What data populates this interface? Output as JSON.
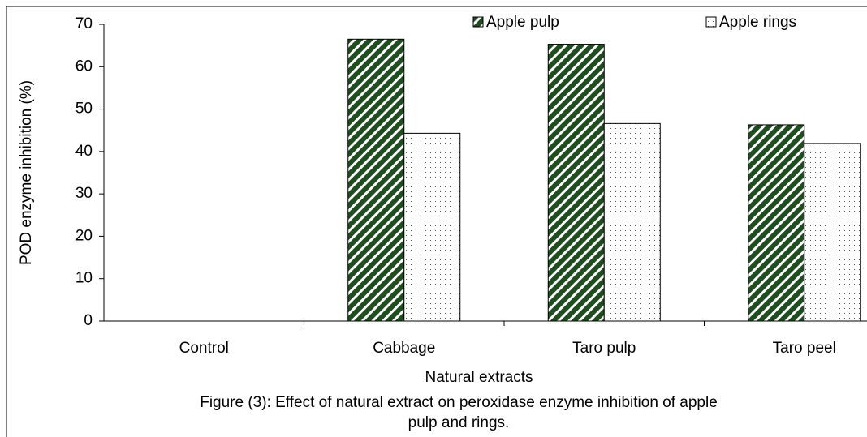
{
  "chart_data": {
    "type": "bar",
    "ylabel": "POD enzyme inhibition (%)",
    "xlabel": "Natural extracts",
    "caption": [
      "Figure (3): Effect of natural extract on peroxidase enzyme inhibition of  apple",
      "pulp and rings."
    ],
    "categories": [
      "Control",
      "Cabbage",
      "Taro pulp",
      "Taro peel"
    ],
    "series": [
      {
        "name": "Apple pulp",
        "color": "#1f4d1f",
        "values": [
          0,
          66.5,
          65.3,
          46.3
        ]
      },
      {
        "name": "Apple rings",
        "color": "#ffffff",
        "values": [
          0,
          44.3,
          46.6,
          41.9
        ]
      }
    ],
    "ylim": [
      0,
      70
    ],
    "yticks": [
      0,
      10,
      20,
      30,
      40,
      50,
      60,
      70
    ],
    "legend": "top-right"
  }
}
